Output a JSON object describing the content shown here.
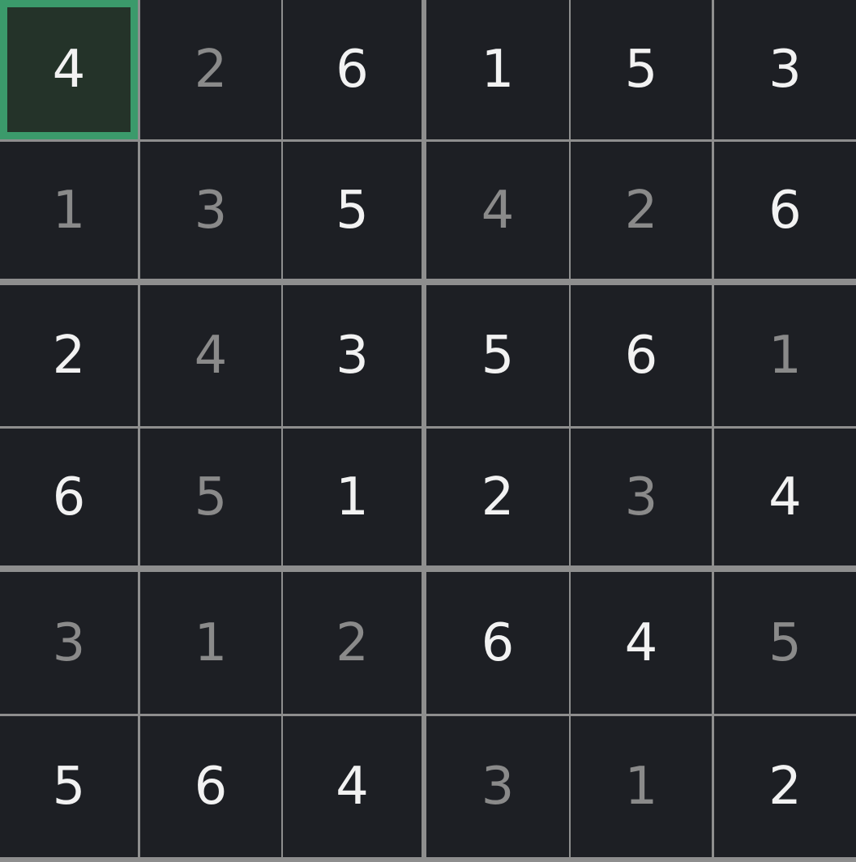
{
  "grid": [
    [
      4,
      2,
      6,
      1,
      5,
      3
    ],
    [
      1,
      3,
      5,
      4,
      2,
      6
    ],
    [
      2,
      4,
      3,
      5,
      6,
      1
    ],
    [
      6,
      5,
      1,
      2,
      3,
      4
    ],
    [
      3,
      1,
      2,
      6,
      4,
      5
    ],
    [
      5,
      6,
      4,
      3,
      1,
      2
    ]
  ],
  "given": [
    [
      true,
      false,
      true,
      true,
      true,
      true
    ],
    [
      false,
      false,
      true,
      false,
      false,
      true
    ],
    [
      true,
      false,
      true,
      true,
      true,
      false
    ],
    [
      true,
      false,
      true,
      true,
      false,
      true
    ],
    [
      false,
      false,
      false,
      true,
      true,
      false
    ],
    [
      true,
      true,
      true,
      false,
      false,
      true
    ]
  ],
  "selected": {
    "row": 0,
    "col": 0
  }
}
